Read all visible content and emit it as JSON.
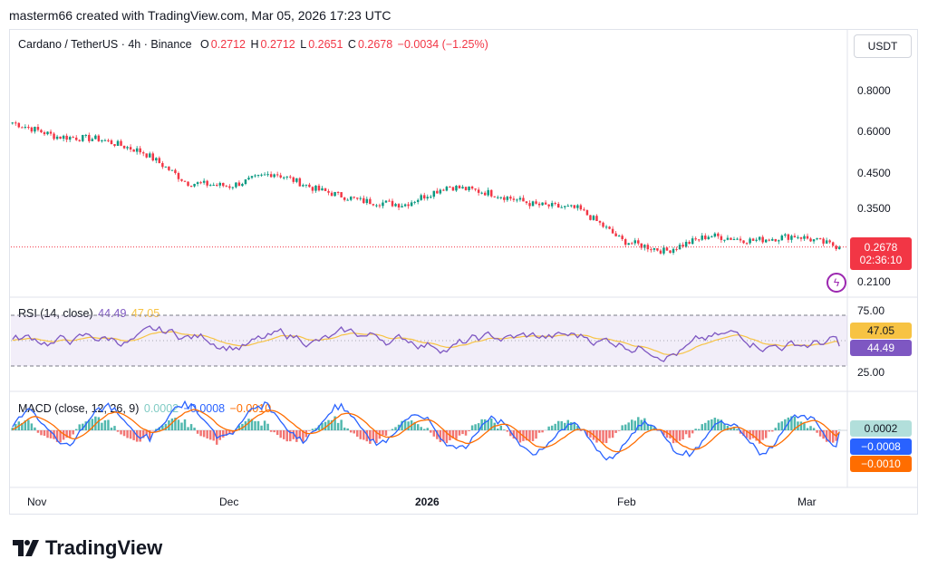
{
  "header": {
    "text": "masterm66 created with TradingView.com, Mar 05, 2026 17:23 UTC"
  },
  "price_legend": {
    "symbol": "Cardano / TetherUS · 4h · Binance",
    "o_label": "O",
    "o_val": "0.2712",
    "h_label": "H",
    "h_val": "0.2712",
    "l_label": "L",
    "l_val": "0.2651",
    "c_label": "C",
    "c_val": "0.2678",
    "change": "−0.0034 (−1.25%)"
  },
  "unit": "USDT",
  "price_axis": [
    "0.8000",
    "0.6000",
    "0.4500",
    "0.3500",
    "0.2100"
  ],
  "price_tag": {
    "price": "0.2678",
    "countdown": "02:36:10"
  },
  "rsi_legend": {
    "label": "RSI (14, close)",
    "v1": "44.49",
    "v2": "47.05"
  },
  "rsi_axis": [
    "75.00",
    "25.00"
  ],
  "rsi_tags": {
    "ma": "47.05",
    "rsi": "44.49"
  },
  "macd_legend": {
    "label": "MACD (close, 12, 26, 9)",
    "hist": "0.0002",
    "macd": "−0.0008",
    "signal": "−0.0010"
  },
  "macd_tags": {
    "hist": "0.0002",
    "macd": "−0.0008",
    "signal": "−0.0010"
  },
  "x_axis": [
    "Nov",
    "Dec",
    "2026",
    "Feb",
    "Mar"
  ],
  "logo": "TradingView",
  "colors": {
    "up": "#089981",
    "down": "#f23645",
    "rsi": "#7e57c2",
    "rsi_ma": "#f7c343",
    "macd": "#2962ff",
    "signal": "#ff6d00",
    "hist_up": "#26a69a",
    "hist_down": "#ef5350"
  },
  "chart_data": {
    "type": "candlestick",
    "title": "Cardano / TetherUS · 4h · Binance",
    "y_scale": "log",
    "x_ticks": [
      "Nov",
      "Dec",
      "2026",
      "Feb",
      "Mar"
    ],
    "close_trend": {
      "x": [
        "Oct 27",
        "Nov 3",
        "Nov 10",
        "Nov 17",
        "Nov 24",
        "Dec 1",
        "Dec 8",
        "Dec 15",
        "Dec 22",
        "Dec 29",
        "Jan 5",
        "Jan 12",
        "Jan 19",
        "Jan 26",
        "Feb 2",
        "Feb 9",
        "Feb 16",
        "Feb 23",
        "Mar 2",
        "Mar 5"
      ],
      "y": [
        0.64,
        0.58,
        0.57,
        0.52,
        0.42,
        0.41,
        0.45,
        0.4,
        0.37,
        0.36,
        0.41,
        0.39,
        0.36,
        0.35,
        0.28,
        0.26,
        0.29,
        0.28,
        0.29,
        0.2678
      ]
    },
    "last": {
      "open": 0.2712,
      "high": 0.2712,
      "low": 0.2651,
      "close": 0.2678
    },
    "rsi": {
      "period": 14,
      "value": 44.49,
      "ma": 47.05,
      "bands": [
        25,
        75
      ]
    },
    "macd": {
      "params": [
        12,
        26,
        9
      ],
      "histogram": 0.0002,
      "macd": -0.0008,
      "signal": -0.001
    }
  }
}
